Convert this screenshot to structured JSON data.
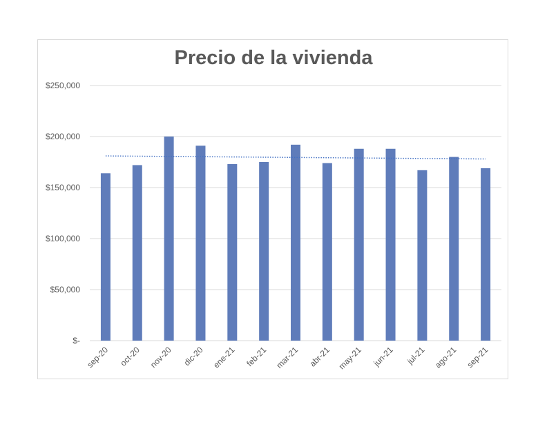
{
  "chart_data": {
    "type": "bar",
    "title": "Precio de la vivienda",
    "categories": [
      "sep-20",
      "oct-20",
      "nov-20",
      "dic-20",
      "ene-21",
      "feb-21",
      "mar-21",
      "abr-21",
      "may-21",
      "jun-21",
      "jul-21",
      "ago-21",
      "sep-21"
    ],
    "values": [
      164000,
      172000,
      200000,
      191000,
      173000,
      175000,
      192000,
      174000,
      188000,
      188000,
      167000,
      180000,
      169000
    ],
    "trendline": {
      "type": "linear",
      "style": "dotted",
      "start": 181000,
      "end": 178000
    },
    "ylim": [
      0,
      250000
    ],
    "yticks": [
      0,
      50000,
      100000,
      150000,
      200000,
      250000
    ],
    "ytick_labels": [
      "$-",
      "$50,000",
      "$100,000",
      "$150,000",
      "$200,000",
      "$250,000"
    ],
    "grid": true,
    "legend": "none",
    "bar_color": "#5f7cba",
    "trend_color": "#4472c4"
  }
}
